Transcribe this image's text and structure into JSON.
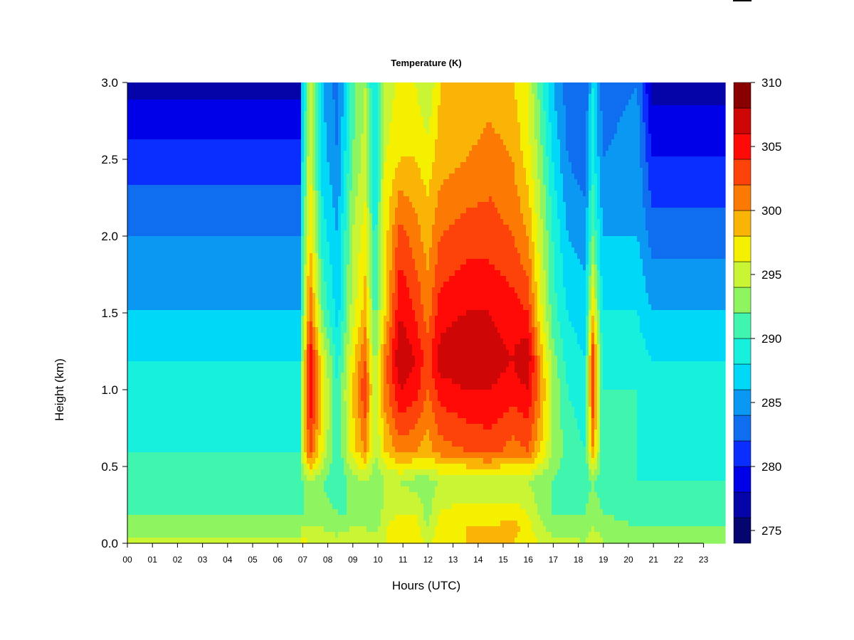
{
  "chart_data": {
    "type": "heatmap",
    "title": "Temperature (K)",
    "xlabel": "Hours (UTC)",
    "ylabel": "Height (km)",
    "x_ticks": [
      "00",
      "01",
      "02",
      "03",
      "04",
      "05",
      "06",
      "07",
      "08",
      "09",
      "10",
      "11",
      "12",
      "13",
      "14",
      "15",
      "16",
      "17",
      "18",
      "19",
      "20",
      "21",
      "22",
      "23"
    ],
    "y_ticks": [
      "0.0",
      "0.5",
      "1.0",
      "1.5",
      "2.0",
      "2.5",
      "3.0"
    ],
    "xlim": [
      0,
      23.9
    ],
    "ylim": [
      0.0,
      3.0
    ],
    "colorbar": {
      "labels": [
        "275",
        "280",
        "285",
        "290",
        "295",
        "300",
        "305",
        "310"
      ],
      "range": [
        274,
        310
      ],
      "step": 2,
      "colors": [
        "#05056f",
        "#0404a8",
        "#0000e8",
        "#0a2eff",
        "#0f6df0",
        "#0b98f3",
        "#00d8f8",
        "#18f0de",
        "#40f5ad",
        "#8ef460",
        "#c9f534",
        "#f4f000",
        "#fab405",
        "#fc7a04",
        "#fe430a",
        "#ff0a06",
        "#cf0606",
        "#880000"
      ]
    },
    "profiles": {
      "heights_km": [
        0.0,
        0.1,
        0.2,
        0.4,
        0.6,
        1.0,
        1.2,
        1.5,
        2.0,
        2.5,
        3.0
      ],
      "columns": [
        {
          "hour": 0.0,
          "T": [
            295,
            293,
            292,
            291,
            290,
            289,
            288,
            286,
            284,
            281,
            277
          ]
        },
        {
          "hour": 6.9,
          "T": [
            295,
            293,
            292,
            291,
            290,
            289,
            288,
            286,
            284,
            281,
            277
          ]
        },
        {
          "hour": 7.0,
          "T": [
            297,
            294,
            292,
            292,
            296,
            296,
            294,
            292,
            290,
            288,
            286
          ]
        },
        {
          "hour": 7.3,
          "T": [
            296,
            294,
            293,
            294,
            303,
            306,
            306,
            302,
            298,
            296,
            295
          ]
        },
        {
          "hour": 7.8,
          "T": [
            295,
            294,
            293,
            292,
            296,
            297,
            296,
            292,
            289,
            287,
            286
          ]
        },
        {
          "hour": 8.4,
          "T": [
            295,
            293,
            292,
            290,
            290,
            290,
            289,
            287,
            286,
            284,
            283
          ]
        },
        {
          "hour": 9.0,
          "T": [
            296,
            294,
            292,
            293,
            297,
            298,
            297,
            295,
            294,
            292,
            291
          ]
        },
        {
          "hour": 9.5,
          "T": [
            296,
            294,
            293,
            294,
            300,
            304,
            302,
            299,
            297,
            295,
            294
          ]
        },
        {
          "hour": 9.9,
          "T": [
            295,
            293,
            292,
            292,
            294,
            294,
            293,
            291,
            289,
            288,
            287
          ]
        },
        {
          "hour": 10.3,
          "T": [
            296,
            296,
            295,
            294,
            298,
            301,
            301,
            298,
            297,
            296,
            294
          ]
        },
        {
          "hour": 10.9,
          "T": [
            297,
            297,
            296,
            294,
            301,
            306,
            308,
            306,
            303,
            298,
            297
          ]
        },
        {
          "hour": 11.5,
          "T": [
            297,
            297,
            296,
            293,
            300,
            305,
            306,
            304,
            301,
            298,
            296
          ]
        },
        {
          "hour": 12.0,
          "T": [
            296,
            294,
            293,
            293,
            299,
            302,
            303,
            301,
            299,
            297,
            294
          ]
        },
        {
          "hour": 12.5,
          "T": [
            297,
            297,
            296,
            294,
            301,
            305,
            307,
            305,
            302,
            299,
            298
          ]
        },
        {
          "hour": 13.5,
          "T": [
            298,
            298,
            297,
            294,
            302,
            306,
            308,
            306,
            303,
            300,
            298
          ]
        },
        {
          "hour": 14.5,
          "T": [
            298,
            298,
            297,
            294,
            303,
            306,
            307,
            306,
            303,
            301,
            299
          ]
        },
        {
          "hour": 15.4,
          "T": [
            298,
            299,
            297,
            294,
            301,
            305,
            306,
            305,
            302,
            300,
            298
          ]
        },
        {
          "hour": 16.0,
          "T": [
            297,
            297,
            296,
            294,
            302,
            306,
            308,
            304,
            300,
            297,
            296
          ]
        },
        {
          "hour": 16.4,
          "T": [
            296,
            295,
            294,
            293,
            299,
            302,
            301,
            298,
            296,
            294,
            292
          ]
        },
        {
          "hour": 17.0,
          "T": [
            295,
            293,
            292,
            292,
            294,
            294,
            293,
            291,
            290,
            288,
            286
          ]
        },
        {
          "hour": 17.6,
          "T": [
            295,
            293,
            292,
            291,
            291,
            290,
            289,
            288,
            286,
            284,
            283
          ]
        },
        {
          "hour": 18.3,
          "T": [
            294,
            293,
            292,
            291,
            290,
            289,
            288,
            287,
            285,
            283,
            282
          ]
        },
        {
          "hour": 18.6,
          "T": [
            296,
            294,
            293,
            292,
            300,
            304,
            304,
            298,
            292,
            289,
            288
          ]
        },
        {
          "hour": 19.0,
          "T": [
            294,
            293,
            292,
            291,
            290,
            290,
            289,
            288,
            286,
            284,
            283
          ]
        },
        {
          "hour": 20.4,
          "T": [
            294,
            292,
            291,
            290,
            290,
            290,
            289,
            288,
            286,
            285,
            284
          ]
        },
        {
          "hour": 21.0,
          "T": [
            294,
            292,
            291,
            290,
            289,
            289,
            288,
            286,
            283,
            280,
            277
          ]
        },
        {
          "hour": 23.9,
          "T": [
            294,
            292,
            291,
            290,
            289,
            289,
            288,
            286,
            283,
            280,
            277
          ]
        }
      ]
    }
  }
}
